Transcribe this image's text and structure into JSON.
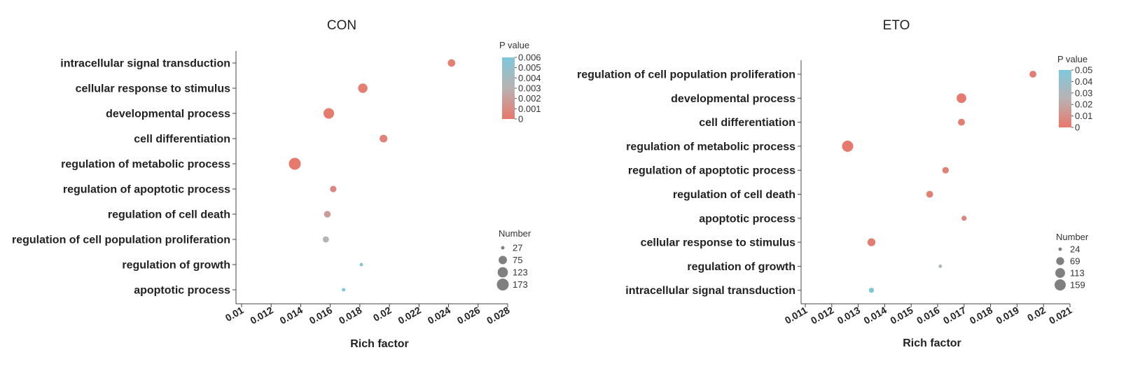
{
  "chart_data": [
    {
      "type": "scatter",
      "title": "CON",
      "xlabel": "Rich factor",
      "ylabel": "",
      "xlim": [
        0.01,
        0.028
      ],
      "xticks": [
        "0.01",
        "0.012",
        "0.014",
        "0.016",
        "0.018",
        "0.02",
        "0.022",
        "0.024",
        "0.026",
        "0.028"
      ],
      "categories": [
        "intracellular signal transduction",
        "cellular response to stimulus",
        "developmental process",
        "cell differentiation",
        "regulation of metabolic process",
        "regulation of apoptotic process",
        "regulation of cell death",
        "regulation of cell population proliferation",
        "regulation of growth",
        "apoptotic process"
      ],
      "points": [
        {
          "category": "intracellular signal transduction",
          "x": 0.0242,
          "number": 60,
          "pvalue": 0.0004
        },
        {
          "category": "cellular response to stimulus",
          "x": 0.0182,
          "number": 100,
          "pvalue": 0.0003
        },
        {
          "category": "developmental process",
          "x": 0.0159,
          "number": 130,
          "pvalue": 0.0002
        },
        {
          "category": "cell differentiation",
          "x": 0.0196,
          "number": 65,
          "pvalue": 0.0005
        },
        {
          "category": "regulation of metabolic process",
          "x": 0.0136,
          "number": 173,
          "pvalue": 0.0001
        },
        {
          "category": "regulation of apoptotic process",
          "x": 0.0162,
          "number": 45,
          "pvalue": 0.0008
        },
        {
          "category": "regulation of cell death",
          "x": 0.0158,
          "number": 48,
          "pvalue": 0.0018
        },
        {
          "category": "regulation of cell population proliferation",
          "x": 0.0157,
          "number": 42,
          "pvalue": 0.0032
        },
        {
          "category": "regulation of growth",
          "x": 0.0181,
          "number": 22,
          "pvalue": 0.0055
        },
        {
          "category": "apoptotic process",
          "x": 0.0169,
          "number": 27,
          "pvalue": 0.006
        }
      ],
      "color_legend": {
        "title": "P value",
        "ticks": [
          "0.006",
          "0.005",
          "0.004",
          "0.003",
          "0.002",
          "0.001",
          "0"
        ],
        "min": 0,
        "max": 0.006,
        "low_color": "#e8786b",
        "mid_color": "#b9b2b2",
        "high_color": "#7ec8dc"
      },
      "size_legend": {
        "title": "Number",
        "values": [
          27,
          75,
          123,
          173
        ]
      }
    },
    {
      "type": "scatter",
      "title": "ETO",
      "xlabel": "Rich factor",
      "ylabel": "",
      "xlim": [
        0.011,
        0.021
      ],
      "xticks": [
        "0.011",
        "0.012",
        "0.013",
        "0.014",
        "0.015",
        "0.016",
        "0.017",
        "0.018",
        "0.019",
        "0.02",
        "0.021"
      ],
      "categories": [
        "regulation of cell population proliferation",
        "developmental process",
        "cell differentiation",
        "regulation of metabolic process",
        "regulation of apoptotic process",
        "regulation of cell death",
        "apoptotic process",
        "cellular response to stimulus",
        "regulation of growth",
        "intracellular signal transduction"
      ],
      "points": [
        {
          "category": "regulation of cell population proliferation",
          "x": 0.0196,
          "number": 50,
          "pvalue": 0.002
        },
        {
          "category": "developmental process",
          "x": 0.0169,
          "number": 110,
          "pvalue": 0.001
        },
        {
          "category": "cell differentiation",
          "x": 0.0169,
          "number": 50,
          "pvalue": 0.002
        },
        {
          "category": "regulation of metabolic process",
          "x": 0.0126,
          "number": 159,
          "pvalue": 0.0005
        },
        {
          "category": "regulation of apoptotic process",
          "x": 0.0163,
          "number": 44,
          "pvalue": 0.004
        },
        {
          "category": "regulation of cell death",
          "x": 0.0157,
          "number": 50,
          "pvalue": 0.004
        },
        {
          "category": "apoptotic process",
          "x": 0.017,
          "number": 30,
          "pvalue": 0.006
        },
        {
          "category": "cellular response to stimulus",
          "x": 0.0135,
          "number": 69,
          "pvalue": 0.002
        },
        {
          "category": "regulation of growth",
          "x": 0.0161,
          "number": 24,
          "pvalue": 0.03
        },
        {
          "category": "intracellular signal transduction",
          "x": 0.0135,
          "number": 30,
          "pvalue": 0.05
        }
      ],
      "color_legend": {
        "title": "P value",
        "ticks": [
          "0.05",
          "0.04",
          "0.03",
          "0.02",
          "0.01",
          "0"
        ],
        "min": 0,
        "max": 0.05,
        "low_color": "#e8786b",
        "mid_color": "#b9b2b2",
        "high_color": "#7ec8dc"
      },
      "size_legend": {
        "title": "Number",
        "values": [
          24,
          69,
          113,
          159
        ]
      }
    }
  ]
}
